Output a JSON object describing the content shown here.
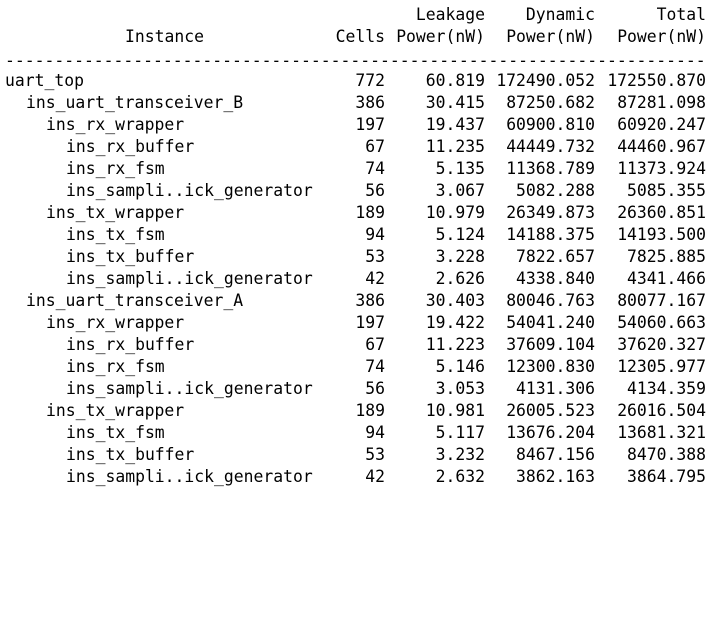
{
  "header": {
    "line1": {
      "leakage": "Leakage",
      "dynamic": "Dynamic",
      "total": "Total"
    },
    "line2": {
      "instance": "Instance",
      "cells": "Cells",
      "leakage": "Power(nW)",
      "dynamic": "Power(nW)",
      "total": "Power(nW)"
    }
  },
  "divider": "-----------------------------------------------------------------------",
  "rows": [
    {
      "instance": "uart_top",
      "cells": "772",
      "leakage": "60.819",
      "dynamic": "172490.052",
      "total": "172550.870"
    },
    {
      "instance": "ins_uart_transceiver_B",
      "cells": "386",
      "leakage": "30.415",
      "dynamic": "87250.682",
      "total": "87281.098"
    },
    {
      "instance": "ins_rx_wrapper",
      "cells": "197",
      "leakage": "19.437",
      "dynamic": "60900.810",
      "total": "60920.247"
    },
    {
      "instance": "ins_rx_buffer",
      "cells": "67",
      "leakage": "11.235",
      "dynamic": "44449.732",
      "total": "44460.967"
    },
    {
      "instance": "ins_rx_fsm",
      "cells": "74",
      "leakage": "5.135",
      "dynamic": "11368.789",
      "total": "11373.924"
    },
    {
      "instance": "ins_sampli..ick_generator",
      "cells": "56",
      "leakage": "3.067",
      "dynamic": "5082.288",
      "total": "5085.355"
    },
    {
      "instance": "ins_tx_wrapper",
      "cells": "189",
      "leakage": "10.979",
      "dynamic": "26349.873",
      "total": "26360.851"
    },
    {
      "instance": "ins_tx_fsm",
      "cells": "94",
      "leakage": "5.124",
      "dynamic": "14188.375",
      "total": "14193.500"
    },
    {
      "instance": "ins_tx_buffer",
      "cells": "53",
      "leakage": "3.228",
      "dynamic": "7822.657",
      "total": "7825.885"
    },
    {
      "instance": "ins_sampli..ick_generator",
      "cells": "42",
      "leakage": "2.626",
      "dynamic": "4338.840",
      "total": "4341.466"
    },
    {
      "instance": "ins_uart_transceiver_A",
      "cells": "386",
      "leakage": "30.403",
      "dynamic": "80046.763",
      "total": "80077.167"
    },
    {
      "instance": "ins_rx_wrapper",
      "cells": "197",
      "leakage": "19.422",
      "dynamic": "54041.240",
      "total": "54060.663"
    },
    {
      "instance": "ins_rx_buffer",
      "cells": "67",
      "leakage": "11.223",
      "dynamic": "37609.104",
      "total": "37620.327"
    },
    {
      "instance": "ins_rx_fsm",
      "cells": "74",
      "leakage": "5.146",
      "dynamic": "12300.830",
      "total": "12305.977"
    },
    {
      "instance": "ins_sampli..ick_generator",
      "cells": "56",
      "leakage": "3.053",
      "dynamic": "4131.306",
      "total": "4134.359"
    },
    {
      "instance": "ins_tx_wrapper",
      "cells": "189",
      "leakage": "10.981",
      "dynamic": "26005.523",
      "total": "26016.504"
    },
    {
      "instance": "ins_tx_fsm",
      "cells": "94",
      "leakage": "5.117",
      "dynamic": "13676.204",
      "total": "13681.321"
    },
    {
      "instance": "ins_tx_buffer",
      "cells": "53",
      "leakage": "3.232",
      "dynamic": "8467.156",
      "total": "8470.388"
    },
    {
      "instance": "ins_sampli..ick_generator",
      "cells": "42",
      "leakage": "2.632",
      "dynamic": "3862.163",
      "total": "3864.795"
    }
  ]
}
